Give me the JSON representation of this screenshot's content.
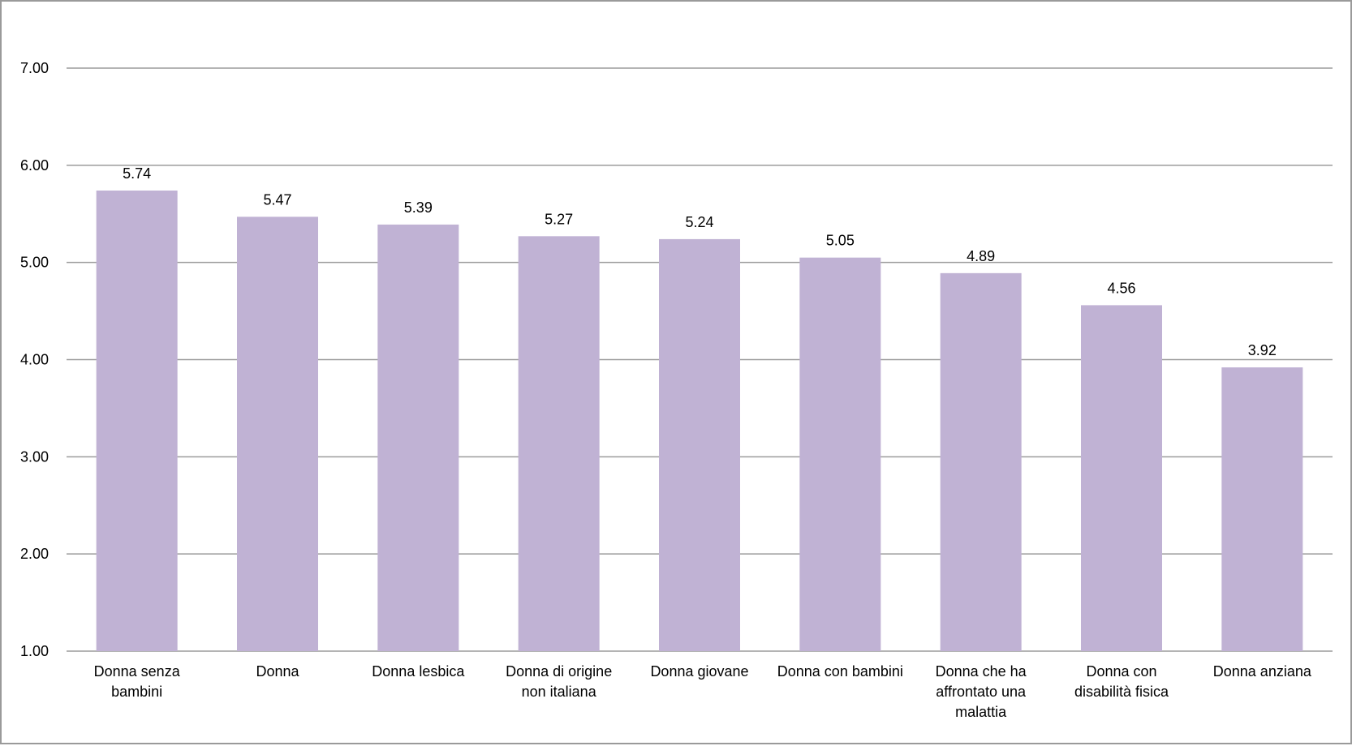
{
  "chart_data": {
    "type": "bar",
    "title": "",
    "xlabel": "",
    "ylabel": "",
    "ylim": [
      1,
      7
    ],
    "y_ticks": [
      "1.00",
      "2.00",
      "3.00",
      "4.00",
      "5.00",
      "6.00",
      "7.00"
    ],
    "grid": true,
    "legend": "none",
    "bar_color": "#c0b2d4",
    "categories": [
      [
        "Donna senza",
        "bambini"
      ],
      [
        "Donna"
      ],
      [
        "Donna lesbica"
      ],
      [
        "Donna di origine",
        "non italiana"
      ],
      [
        "Donna giovane"
      ],
      [
        "Donna con bambini"
      ],
      [
        "Donna che ha",
        "affrontato una",
        "malattia"
      ],
      [
        "Donna con",
        "disabilità fisica"
      ],
      [
        "Donna anziana"
      ]
    ],
    "values": [
      5.74,
      5.47,
      5.39,
      5.27,
      5.24,
      5.05,
      4.89,
      4.56,
      3.92
    ],
    "value_labels": [
      "5.74",
      "5.47",
      "5.39",
      "5.27",
      "5.24",
      "5.05",
      "4.89",
      "4.56",
      "3.92"
    ]
  }
}
